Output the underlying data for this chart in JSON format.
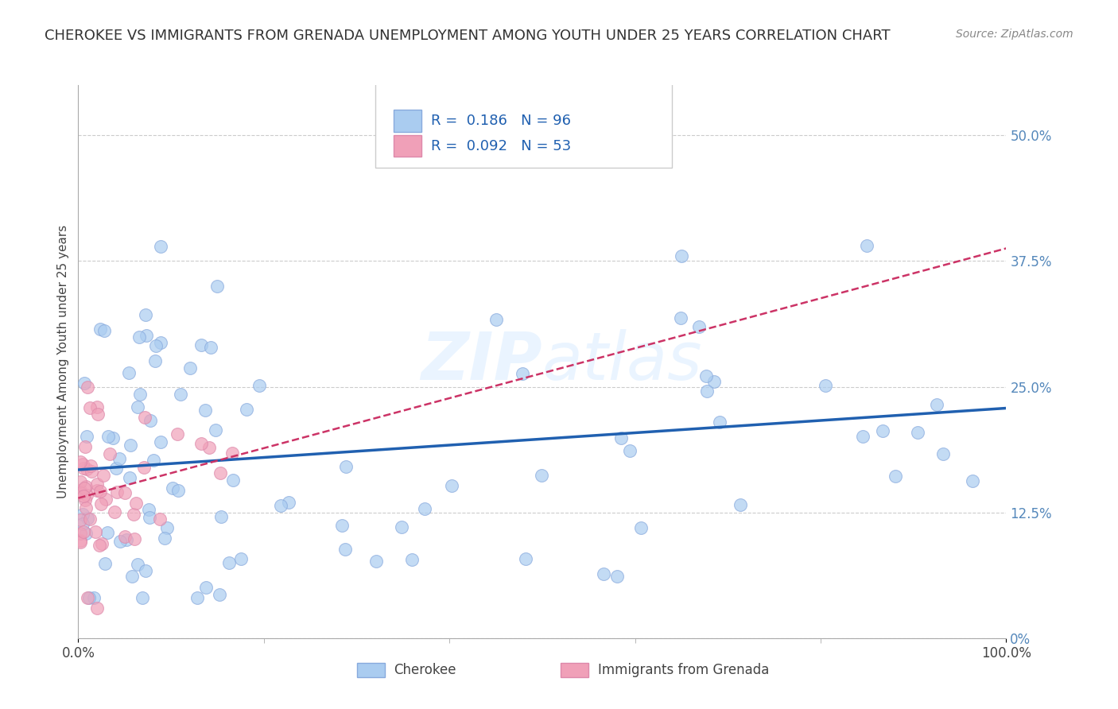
{
  "title": "CHEROKEE VS IMMIGRANTS FROM GRENADA UNEMPLOYMENT AMONG YOUTH UNDER 25 YEARS CORRELATION CHART",
  "source": "Source: ZipAtlas.com",
  "ylabel": "Unemployment Among Youth under 25 years",
  "xlim": [
    0,
    100
  ],
  "ylim": [
    0,
    55
  ],
  "ytick_vals": [
    0,
    12.5,
    25.0,
    37.5,
    50.0
  ],
  "ytick_labels": [
    "0%",
    "12.5%",
    "25.0%",
    "37.5%",
    "50.0%"
  ],
  "xtick_vals": [
    0,
    100
  ],
  "xtick_labels": [
    "0.0%",
    "100.0%"
  ],
  "cherokee_R": "0.186",
  "cherokee_N": "96",
  "grenada_R": "0.092",
  "grenada_N": "53",
  "cherokee_color": "#aaccf0",
  "cherokee_edge_color": "#88aadd",
  "cherokee_line_color": "#2060b0",
  "grenada_color": "#f0a0b8",
  "grenada_edge_color": "#dd88aa",
  "grenada_line_color": "#cc3366",
  "watermark_color": "#d8e8f8",
  "background_color": "#ffffff",
  "grid_color": "#cccccc",
  "title_color": "#333333",
  "source_color": "#888888",
  "tick_color": "#5588bb",
  "legend_label_color": "#2060b0",
  "axis_label_color": "#444444",
  "cherokee_seed": 7,
  "grenada_seed": 13
}
